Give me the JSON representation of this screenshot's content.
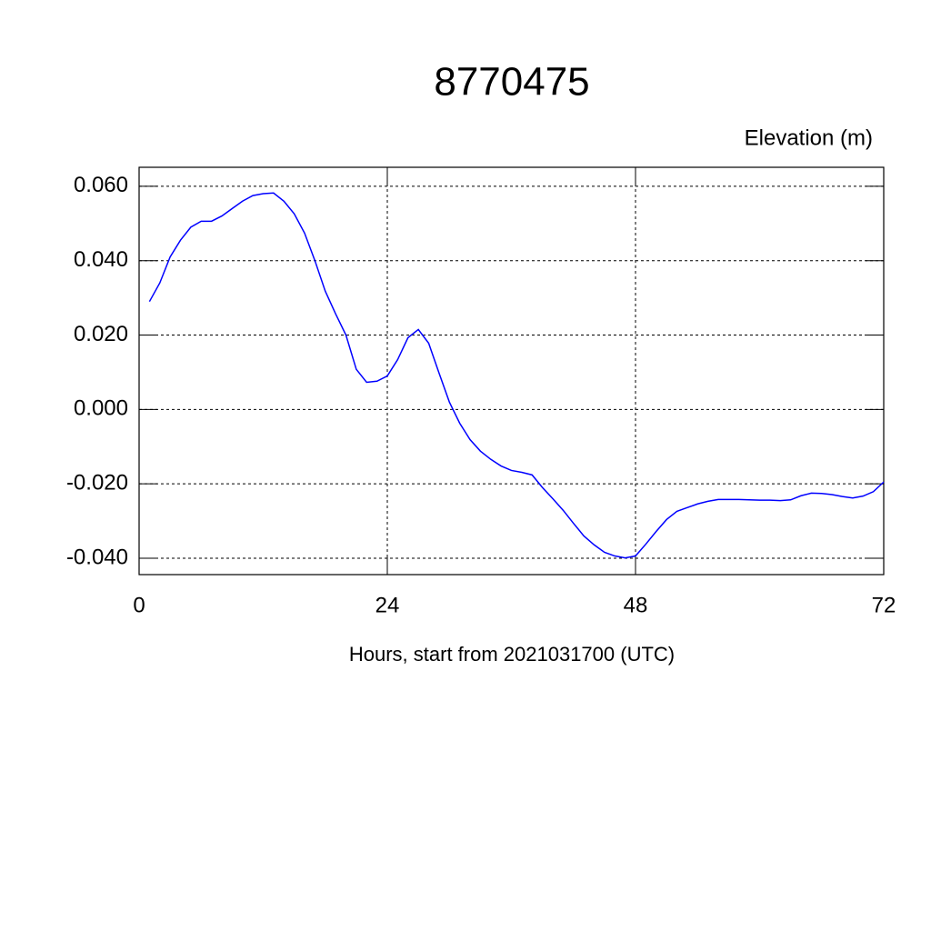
{
  "chart_data": {
    "type": "line",
    "title": "8770475",
    "subtitle": "Elevation (m)",
    "x_label": "Hours, start from 2021031700 (UTC)",
    "x": [
      1,
      2,
      3,
      4,
      5,
      6,
      7,
      8,
      9,
      10,
      11,
      12,
      13,
      14,
      15,
      16,
      17,
      18,
      19,
      20,
      21,
      22,
      23,
      24,
      25,
      26,
      27,
      28,
      29,
      30,
      31,
      32,
      33,
      34,
      35,
      36,
      37,
      38,
      39,
      40,
      41,
      42,
      43,
      44,
      45,
      46,
      47,
      48,
      49,
      50,
      51,
      52,
      53,
      54,
      55,
      56,
      57,
      58,
      59,
      60,
      61,
      62,
      63,
      64,
      65,
      66,
      67,
      68,
      69,
      70,
      71,
      72
    ],
    "series": [
      {
        "name": "Elevation",
        "color": "#0000ff",
        "values": [
          0.029,
          0.034,
          0.041,
          0.0455,
          0.049,
          0.0506,
          0.0506,
          0.052,
          0.054,
          0.056,
          0.0575,
          0.058,
          0.0582,
          0.056,
          0.0526,
          0.0474,
          0.04,
          0.0318,
          0.0257,
          0.02,
          0.0108,
          0.0073,
          0.0076,
          0.009,
          0.0134,
          0.0193,
          0.0215,
          0.0178,
          0.0098,
          0.002,
          -0.0037,
          -0.0081,
          -0.0112,
          -0.0134,
          -0.0152,
          -0.0164,
          -0.0169,
          -0.0176,
          -0.021,
          -0.024,
          -0.0271,
          -0.0306,
          -0.034,
          -0.0364,
          -0.0384,
          -0.0394,
          -0.0399,
          -0.0394,
          -0.0362,
          -0.0328,
          -0.0296,
          -0.0274,
          -0.0264,
          -0.0254,
          -0.0247,
          -0.0242,
          -0.0242,
          -0.0242,
          -0.0243,
          -0.0244,
          -0.0244,
          -0.0245,
          -0.0243,
          -0.0232,
          -0.0225,
          -0.0226,
          -0.0229,
          -0.0234,
          -0.0238,
          -0.0233,
          -0.0221,
          -0.0195
        ]
      }
    ],
    "xlim": [
      0,
      72
    ],
    "xticks": [
      0,
      24,
      48,
      72
    ],
    "ylim": [
      -0.0444,
      0.0651
    ],
    "yticks": [
      {
        "value": -0.04,
        "label": "-0.040"
      },
      {
        "value": -0.02,
        "label": "-0.020"
      },
      {
        "value": 0,
        "label": "0.000"
      },
      {
        "value": 0.02,
        "label": "0.020"
      },
      {
        "value": 0.04,
        "label": "0.040"
      },
      {
        "value": 0.06,
        "label": "0.060"
      }
    ],
    "grid": true
  }
}
